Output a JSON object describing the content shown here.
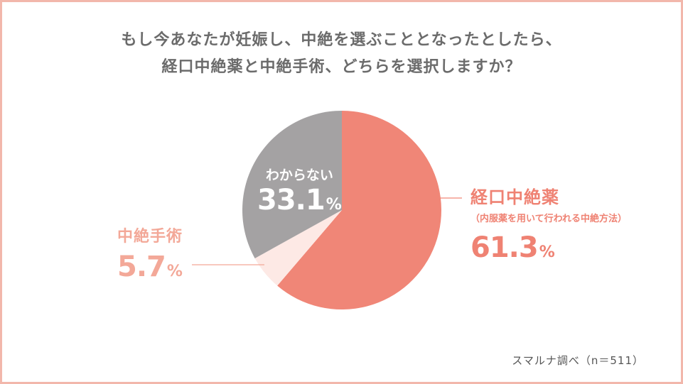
{
  "title_lines": [
    "もし今あなたが妊娠し、中絶を選ぶこととなったとしたら、",
    "経口中絶薬と中絶手術、どちらを選択しますか？"
  ],
  "source": "スマルナ調べ（n＝511）",
  "colors": {
    "frame": "#f2b7ab",
    "oral": "#f08677",
    "surgery": "#fde9e5",
    "unknown": "#a4a2a3",
    "title": "#6b6b6b"
  },
  "chart_data": {
    "type": "pie",
    "title": "もし今あなたが妊娠し、中絶を選ぶこととなったとしたら、経口中絶薬と中絶手術、どちらを選択しますか？",
    "slices": [
      {
        "label": "経口中絶薬",
        "sublabel": "（内服薬を用いて行われる中絶方法）",
        "value": 61.3,
        "value_text": "61.3",
        "color": "#f08677"
      },
      {
        "label": "中絶手術",
        "value": 5.7,
        "value_text": "5.7",
        "color": "#fde9e5"
      },
      {
        "label": "わからない",
        "value": 33.1,
        "value_text": "33.1",
        "color": "#a4a2a3"
      }
    ],
    "unit": "%",
    "start": "12 o'clock",
    "direction": "clockwise"
  }
}
